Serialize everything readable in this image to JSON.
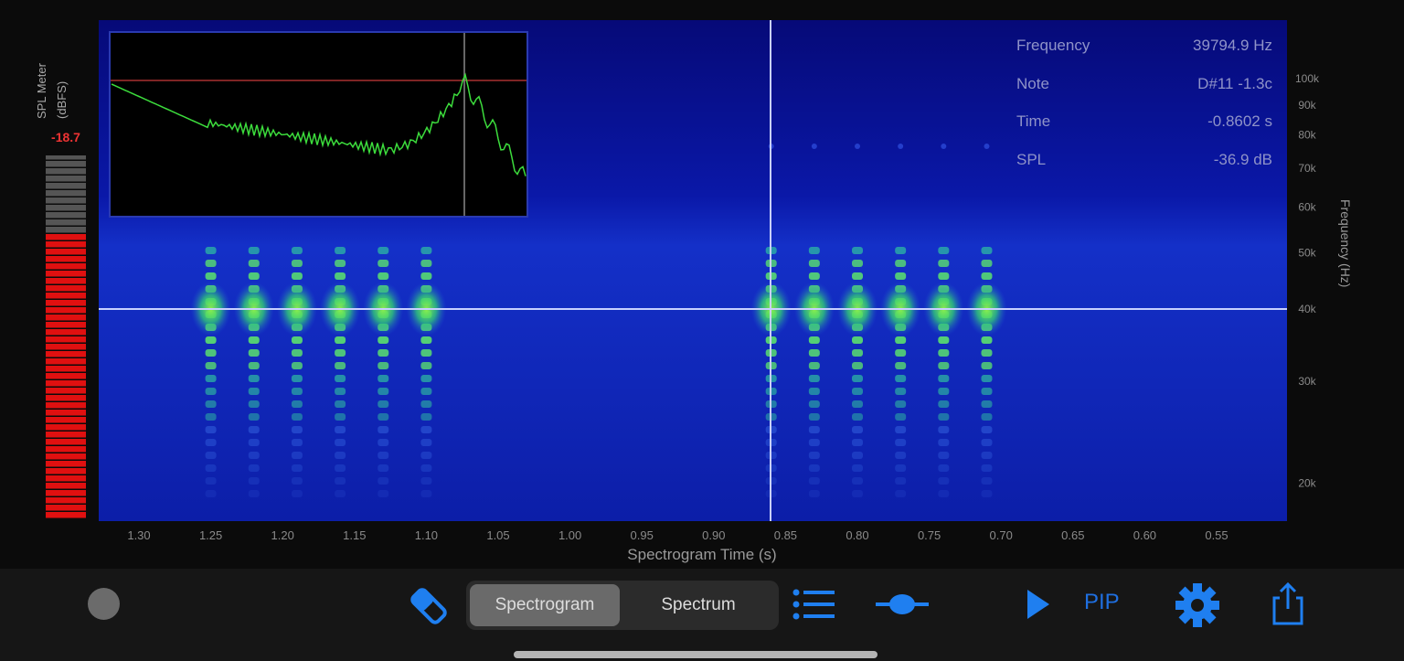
{
  "spl_meter": {
    "label": "SPL Meter",
    "unit": "(dBFS)",
    "value": "-18.7",
    "level_fraction": 0.77
  },
  "readout": [
    {
      "label": "Frequency",
      "value": "39794.9 Hz"
    },
    {
      "label": "Note",
      "value": "D#11 -1.3c"
    },
    {
      "label": "Time",
      "value": "-0.8602 s"
    },
    {
      "label": "SPL",
      "value": "-36.9 dB"
    }
  ],
  "axes": {
    "x_label": "Spectrogram Time (s)",
    "x_ticks": [
      "1.30",
      "1.25",
      "1.20",
      "1.15",
      "1.10",
      "1.05",
      "1.00",
      "0.95",
      "0.90",
      "0.85",
      "0.80",
      "0.75",
      "0.70",
      "0.65",
      "0.60",
      "0.55"
    ],
    "y_label": "Frequency (Hz)",
    "y_ticks": [
      {
        "label": "100k",
        "v": 100000
      },
      {
        "label": "90k",
        "v": 90000
      },
      {
        "label": "80k",
        "v": 80000
      },
      {
        "label": "70k",
        "v": 70000
      },
      {
        "label": "60k",
        "v": 60000
      },
      {
        "label": "50k",
        "v": 50000
      },
      {
        "label": "40k",
        "v": 40000
      },
      {
        "label": "30k",
        "v": 30000
      },
      {
        "label": "20k",
        "v": 20000
      }
    ],
    "y_scale": "log"
  },
  "cursor": {
    "time": 0.8602,
    "frequency": 39794.9
  },
  "bursts_time": [
    1.25,
    1.22,
    1.19,
    1.16,
    1.13,
    1.1,
    0.86,
    0.83,
    0.8,
    0.77,
    0.74,
    0.71
  ],
  "toolbar": {
    "segments": [
      "Spectrogram",
      "Spectrum"
    ],
    "selected": "Spectrogram",
    "pip": "PIP"
  },
  "colors": {
    "accent": "#1f7ff0",
    "meter_red": "#e01010",
    "spectrum_green": "#3cdc3c",
    "background_blue": "#0c1aa0"
  }
}
